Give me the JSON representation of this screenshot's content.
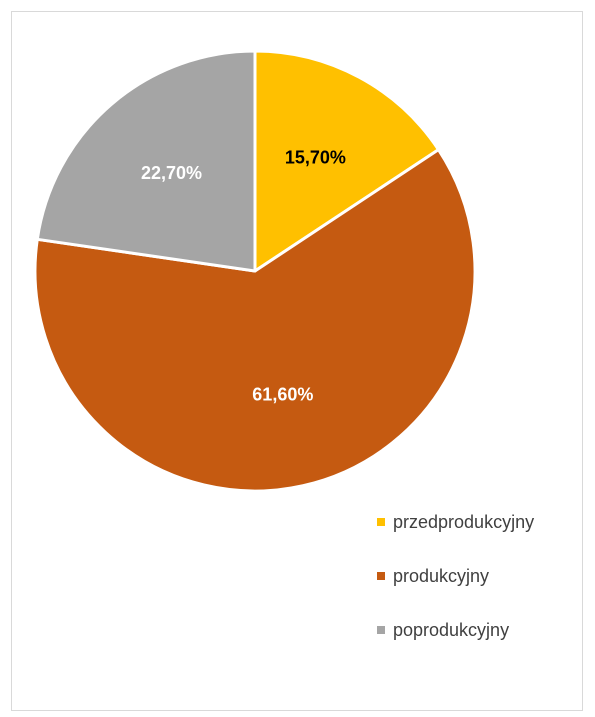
{
  "chart_data": {
    "type": "pie",
    "title": "",
    "categories": [
      "przedprodukcyjny",
      "produkcyjny",
      "poprodukcyjny"
    ],
    "values": [
      15.7,
      61.6,
      22.7
    ],
    "data_labels": [
      "15,70%",
      "61,60%",
      "22,70%"
    ],
    "colors": [
      "#FFC000",
      "#C55A11",
      "#A5A5A5"
    ],
    "label_colors": [
      "#000000",
      "#ffffff",
      "#ffffff"
    ],
    "legend_position": "bottom-right",
    "start_angle": "12 o'clock",
    "direction": "clockwise"
  }
}
